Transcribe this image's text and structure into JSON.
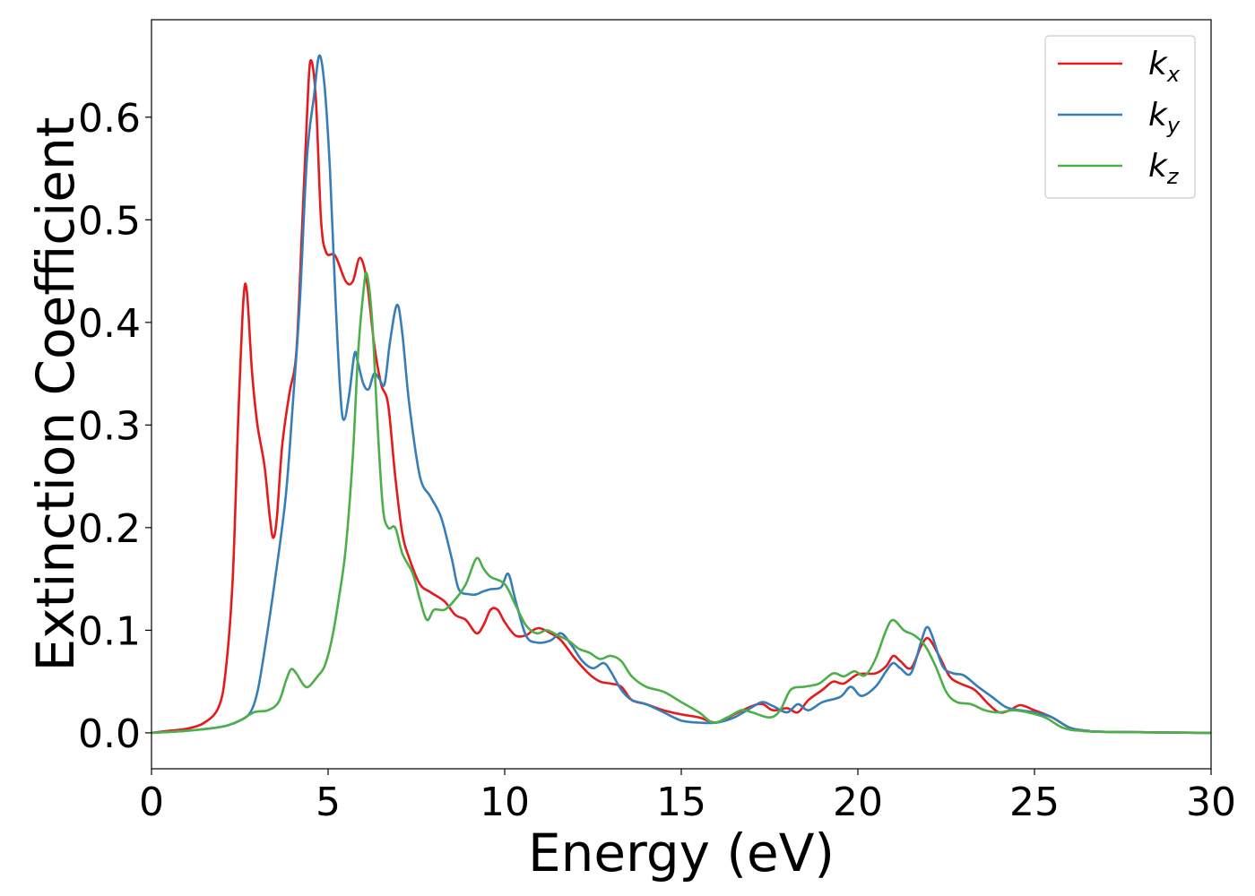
{
  "chart_data": {
    "type": "line",
    "title": "",
    "xlabel": "Energy (eV)",
    "ylabel": "Extinction Coefficient",
    "xlim": [
      0,
      30
    ],
    "ylim": [
      -0.035,
      0.695
    ],
    "xticks": [
      0,
      5,
      10,
      15,
      20,
      25,
      30
    ],
    "xtick_labels": [
      "0",
      "5",
      "10",
      "15",
      "20",
      "25",
      "30"
    ],
    "yticks": [
      0.0,
      0.1,
      0.2,
      0.3,
      0.4,
      0.5,
      0.6
    ],
    "ytick_labels": [
      "0.0",
      "0.1",
      "0.2",
      "0.3",
      "0.4",
      "0.5",
      "0.6"
    ],
    "grid": false,
    "legend": "top-right",
    "series": [
      {
        "name": "k",
        "subscript": "x",
        "color": "#e41a1c",
        "points": [
          [
            0,
            0.0
          ],
          [
            0.5,
            0.002
          ],
          [
            1.0,
            0.004
          ],
          [
            1.5,
            0.01
          ],
          [
            1.9,
            0.025
          ],
          [
            2.1,
            0.06
          ],
          [
            2.3,
            0.15
          ],
          [
            2.45,
            0.3
          ],
          [
            2.6,
            0.42
          ],
          [
            2.7,
            0.43
          ],
          [
            2.85,
            0.35
          ],
          [
            3.0,
            0.3
          ],
          [
            3.2,
            0.26
          ],
          [
            3.35,
            0.21
          ],
          [
            3.45,
            0.19
          ],
          [
            3.55,
            0.21
          ],
          [
            3.7,
            0.28
          ],
          [
            3.9,
            0.33
          ],
          [
            4.1,
            0.37
          ],
          [
            4.25,
            0.48
          ],
          [
            4.4,
            0.6
          ],
          [
            4.5,
            0.655
          ],
          [
            4.65,
            0.62
          ],
          [
            4.8,
            0.5
          ],
          [
            4.95,
            0.468
          ],
          [
            5.2,
            0.465
          ],
          [
            5.5,
            0.44
          ],
          [
            5.7,
            0.44
          ],
          [
            5.9,
            0.463
          ],
          [
            6.1,
            0.44
          ],
          [
            6.3,
            0.38
          ],
          [
            6.5,
            0.34
          ],
          [
            6.7,
            0.32
          ],
          [
            6.9,
            0.25
          ],
          [
            7.1,
            0.195
          ],
          [
            7.3,
            0.17
          ],
          [
            7.6,
            0.145
          ],
          [
            7.9,
            0.137
          ],
          [
            8.3,
            0.128
          ],
          [
            8.6,
            0.115
          ],
          [
            8.9,
            0.11
          ],
          [
            9.2,
            0.097
          ],
          [
            9.4,
            0.105
          ],
          [
            9.6,
            0.12
          ],
          [
            9.8,
            0.12
          ],
          [
            10.0,
            0.108
          ],
          [
            10.3,
            0.095
          ],
          [
            10.6,
            0.095
          ],
          [
            10.8,
            0.1
          ],
          [
            11.0,
            0.102
          ],
          [
            11.3,
            0.097
          ],
          [
            11.6,
            0.09
          ],
          [
            12.0,
            0.072
          ],
          [
            12.4,
            0.057
          ],
          [
            12.7,
            0.05
          ],
          [
            13.0,
            0.048
          ],
          [
            13.3,
            0.045
          ],
          [
            13.6,
            0.032
          ],
          [
            14.0,
            0.028
          ],
          [
            14.5,
            0.022
          ],
          [
            15.0,
            0.018
          ],
          [
            15.5,
            0.015
          ],
          [
            16.0,
            0.01
          ],
          [
            16.5,
            0.018
          ],
          [
            17.0,
            0.026
          ],
          [
            17.3,
            0.028
          ],
          [
            17.6,
            0.022
          ],
          [
            18.0,
            0.024
          ],
          [
            18.3,
            0.02
          ],
          [
            18.6,
            0.032
          ],
          [
            19.0,
            0.042
          ],
          [
            19.3,
            0.05
          ],
          [
            19.6,
            0.048
          ],
          [
            20.0,
            0.057
          ],
          [
            20.5,
            0.058
          ],
          [
            20.8,
            0.065
          ],
          [
            21.0,
            0.075
          ],
          [
            21.2,
            0.07
          ],
          [
            21.5,
            0.063
          ],
          [
            21.8,
            0.085
          ],
          [
            22.0,
            0.092
          ],
          [
            22.3,
            0.075
          ],
          [
            22.6,
            0.055
          ],
          [
            22.9,
            0.048
          ],
          [
            23.3,
            0.042
          ],
          [
            23.7,
            0.028
          ],
          [
            24.0,
            0.02
          ],
          [
            24.3,
            0.022
          ],
          [
            24.6,
            0.027
          ],
          [
            25.0,
            0.022
          ],
          [
            25.5,
            0.015
          ],
          [
            26.0,
            0.005
          ],
          [
            26.5,
            0.002
          ],
          [
            27.0,
            0.001
          ],
          [
            30.0,
            0.0
          ]
        ]
      },
      {
        "name": "k",
        "subscript": "y",
        "color": "#377eb8",
        "points": [
          [
            0,
            0.0
          ],
          [
            1.0,
            0.002
          ],
          [
            2.0,
            0.006
          ],
          [
            2.5,
            0.012
          ],
          [
            2.8,
            0.02
          ],
          [
            3.0,
            0.04
          ],
          [
            3.2,
            0.08
          ],
          [
            3.5,
            0.15
          ],
          [
            3.8,
            0.23
          ],
          [
            4.0,
            0.32
          ],
          [
            4.2,
            0.42
          ],
          [
            4.4,
            0.56
          ],
          [
            4.6,
            0.62
          ],
          [
            4.75,
            0.66
          ],
          [
            4.9,
            0.63
          ],
          [
            5.05,
            0.55
          ],
          [
            5.2,
            0.43
          ],
          [
            5.35,
            0.33
          ],
          [
            5.45,
            0.305
          ],
          [
            5.6,
            0.33
          ],
          [
            5.75,
            0.37
          ],
          [
            5.85,
            0.36
          ],
          [
            6.0,
            0.34
          ],
          [
            6.15,
            0.335
          ],
          [
            6.3,
            0.35
          ],
          [
            6.45,
            0.345
          ],
          [
            6.6,
            0.34
          ],
          [
            6.75,
            0.38
          ],
          [
            6.95,
            0.417
          ],
          [
            7.1,
            0.39
          ],
          [
            7.3,
            0.32
          ],
          [
            7.6,
            0.25
          ],
          [
            7.9,
            0.23
          ],
          [
            8.2,
            0.21
          ],
          [
            8.5,
            0.17
          ],
          [
            8.7,
            0.14
          ],
          [
            9.0,
            0.135
          ],
          [
            9.2,
            0.135
          ],
          [
            9.4,
            0.138
          ],
          [
            9.6,
            0.14
          ],
          [
            9.9,
            0.142
          ],
          [
            10.1,
            0.155
          ],
          [
            10.3,
            0.13
          ],
          [
            10.6,
            0.095
          ],
          [
            10.9,
            0.088
          ],
          [
            11.3,
            0.09
          ],
          [
            11.6,
            0.097
          ],
          [
            11.9,
            0.085
          ],
          [
            12.2,
            0.07
          ],
          [
            12.5,
            0.063
          ],
          [
            12.8,
            0.068
          ],
          [
            13.0,
            0.06
          ],
          [
            13.3,
            0.042
          ],
          [
            13.6,
            0.032
          ],
          [
            14.0,
            0.028
          ],
          [
            14.5,
            0.02
          ],
          [
            15.0,
            0.012
          ],
          [
            15.5,
            0.01
          ],
          [
            16.0,
            0.01
          ],
          [
            16.5,
            0.015
          ],
          [
            17.0,
            0.025
          ],
          [
            17.3,
            0.03
          ],
          [
            17.6,
            0.026
          ],
          [
            18.0,
            0.02
          ],
          [
            18.3,
            0.028
          ],
          [
            18.6,
            0.022
          ],
          [
            19.0,
            0.03
          ],
          [
            19.5,
            0.035
          ],
          [
            19.8,
            0.045
          ],
          [
            20.1,
            0.036
          ],
          [
            20.5,
            0.045
          ],
          [
            20.8,
            0.06
          ],
          [
            21.0,
            0.068
          ],
          [
            21.2,
            0.063
          ],
          [
            21.5,
            0.058
          ],
          [
            21.8,
            0.09
          ],
          [
            21.95,
            0.103
          ],
          [
            22.1,
            0.095
          ],
          [
            22.4,
            0.065
          ],
          [
            22.7,
            0.058
          ],
          [
            23.0,
            0.056
          ],
          [
            23.4,
            0.045
          ],
          [
            23.8,
            0.035
          ],
          [
            24.2,
            0.025
          ],
          [
            24.6,
            0.022
          ],
          [
            25.0,
            0.02
          ],
          [
            25.5,
            0.015
          ],
          [
            26.0,
            0.005
          ],
          [
            26.5,
            0.002
          ],
          [
            27.0,
            0.001
          ],
          [
            30.0,
            0.0
          ]
        ]
      },
      {
        "name": "k",
        "subscript": "z",
        "color": "#4daf4a",
        "points": [
          [
            0,
            0.0
          ],
          [
            1.0,
            0.002
          ],
          [
            2.0,
            0.006
          ],
          [
            2.5,
            0.012
          ],
          [
            2.9,
            0.02
          ],
          [
            3.3,
            0.022
          ],
          [
            3.6,
            0.03
          ],
          [
            3.8,
            0.05
          ],
          [
            3.95,
            0.062
          ],
          [
            4.1,
            0.058
          ],
          [
            4.3,
            0.047
          ],
          [
            4.45,
            0.045
          ],
          [
            4.7,
            0.055
          ],
          [
            4.9,
            0.065
          ],
          [
            5.1,
            0.09
          ],
          [
            5.3,
            0.13
          ],
          [
            5.5,
            0.18
          ],
          [
            5.7,
            0.27
          ],
          [
            5.85,
            0.37
          ],
          [
            6.0,
            0.43
          ],
          [
            6.1,
            0.447
          ],
          [
            6.25,
            0.4
          ],
          [
            6.4,
            0.3
          ],
          [
            6.55,
            0.22
          ],
          [
            6.7,
            0.2
          ],
          [
            6.9,
            0.2
          ],
          [
            7.1,
            0.175
          ],
          [
            7.4,
            0.155
          ],
          [
            7.6,
            0.13
          ],
          [
            7.8,
            0.11
          ],
          [
            8.0,
            0.12
          ],
          [
            8.3,
            0.12
          ],
          [
            8.6,
            0.13
          ],
          [
            8.9,
            0.145
          ],
          [
            9.2,
            0.17
          ],
          [
            9.4,
            0.16
          ],
          [
            9.6,
            0.152
          ],
          [
            10.0,
            0.145
          ],
          [
            10.3,
            0.125
          ],
          [
            10.6,
            0.105
          ],
          [
            10.9,
            0.097
          ],
          [
            11.2,
            0.1
          ],
          [
            11.5,
            0.095
          ],
          [
            11.8,
            0.09
          ],
          [
            12.1,
            0.082
          ],
          [
            12.4,
            0.078
          ],
          [
            12.7,
            0.072
          ],
          [
            13.0,
            0.075
          ],
          [
            13.3,
            0.07
          ],
          [
            13.6,
            0.055
          ],
          [
            14.0,
            0.045
          ],
          [
            14.5,
            0.04
          ],
          [
            15.0,
            0.03
          ],
          [
            15.5,
            0.02
          ],
          [
            15.9,
            0.01
          ],
          [
            16.3,
            0.015
          ],
          [
            16.7,
            0.022
          ],
          [
            17.0,
            0.02
          ],
          [
            17.5,
            0.015
          ],
          [
            17.8,
            0.022
          ],
          [
            18.1,
            0.042
          ],
          [
            18.5,
            0.045
          ],
          [
            18.9,
            0.048
          ],
          [
            19.3,
            0.058
          ],
          [
            19.6,
            0.055
          ],
          [
            19.9,
            0.06
          ],
          [
            20.2,
            0.056
          ],
          [
            20.5,
            0.072
          ],
          [
            20.8,
            0.1
          ],
          [
            21.0,
            0.11
          ],
          [
            21.3,
            0.1
          ],
          [
            21.6,
            0.095
          ],
          [
            21.9,
            0.085
          ],
          [
            22.2,
            0.065
          ],
          [
            22.5,
            0.04
          ],
          [
            22.8,
            0.03
          ],
          [
            23.2,
            0.028
          ],
          [
            23.6,
            0.022
          ],
          [
            24.0,
            0.02
          ],
          [
            24.4,
            0.022
          ],
          [
            24.8,
            0.02
          ],
          [
            25.3,
            0.015
          ],
          [
            25.8,
            0.005
          ],
          [
            26.3,
            0.002
          ],
          [
            27.0,
            0.001
          ],
          [
            30.0,
            0.0
          ]
        ]
      }
    ]
  }
}
